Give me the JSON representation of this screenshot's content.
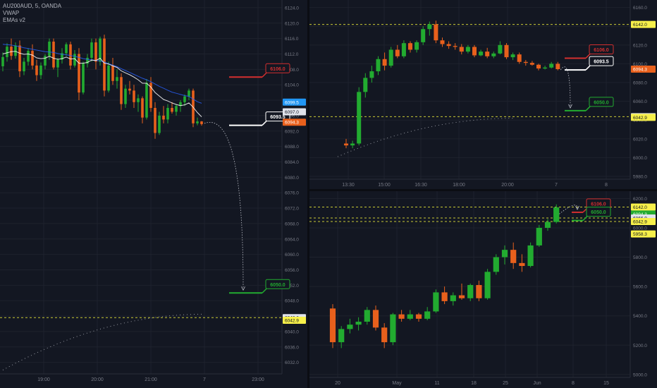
{
  "legend": {
    "symbol_line": "AU200AUD, 5, OANDA",
    "indicator_1": "VWAP",
    "indicator_2": "EMAs v2"
  },
  "colors": {
    "background": "#131722",
    "grid": "#1e222d",
    "bull": "#26a69a",
    "bull_candle": "#22ab30",
    "bear_candle": "#e8601c",
    "target_red": "#d32f2f",
    "target_white": "#ffffff",
    "target_green": "#22ab30",
    "level_yellow": "#c9c934",
    "ema_blue": "#2962ff",
    "vwap": "#ffffff",
    "axis_text": "#787b86",
    "price_badge_blue": "#2196f3",
    "price_badge_orange": "#e8601c",
    "price_badge_yellow": "#f7f04a"
  },
  "chart_data": [
    {
      "panel": "left",
      "type": "candlestick",
      "timeframe": "5",
      "x_ticks": [
        "19:00",
        "20:00",
        "21:00",
        "7",
        "23:00"
      ],
      "y_ticks": [
        6032.0,
        6036.0,
        6040.0,
        6044.0,
        6048.0,
        6052.0,
        6056.0,
        6060.0,
        6064.0,
        6068.0,
        6072.0,
        6076.0,
        6080.0,
        6084.0,
        6088.0,
        6092.0,
        6096.0,
        6100.0,
        6104.0,
        6108.0,
        6112.0,
        6116.0,
        6120.0,
        6124.0
      ],
      "ylim": [
        6029,
        6126
      ],
      "candles": [
        [
          6108.8,
          6112.4,
          6107.5,
          6111.2
        ],
        [
          6111.2,
          6114.8,
          6110.0,
          6113.9
        ],
        [
          6113.9,
          6116.0,
          6110.5,
          6111.5
        ],
        [
          6111.5,
          6115.0,
          6110.8,
          6114.2
        ],
        [
          6114.2,
          6115.5,
          6106.0,
          6107.5
        ],
        [
          6107.5,
          6111.0,
          6106.5,
          6110.0
        ],
        [
          6110.0,
          6113.5,
          6109.0,
          6112.8
        ],
        [
          6112.8,
          6114.5,
          6108.0,
          6109.0
        ],
        [
          6109.0,
          6110.5,
          6105.0,
          6106.5
        ],
        [
          6106.5,
          6109.8,
          6105.5,
          6109.0
        ],
        [
          6109.0,
          6112.0,
          6108.0,
          6111.5
        ],
        [
          6111.5,
          6116.0,
          6110.5,
          6115.2
        ],
        [
          6115.2,
          6116.0,
          6108.0,
          6108.5
        ],
        [
          6108.5,
          6111.0,
          6106.0,
          6110.5
        ],
        [
          6110.5,
          6113.5,
          6109.5,
          6112.2
        ],
        [
          6112.2,
          6115.0,
          6111.5,
          6114.5
        ],
        [
          6114.5,
          6115.2,
          6108.0,
          6109.0
        ],
        [
          6109.0,
          6113.0,
          6108.5,
          6112.0
        ],
        [
          6112.0,
          6113.5,
          6100.0,
          6102.0
        ],
        [
          6102.0,
          6110.0,
          6101.5,
          6109.5
        ],
        [
          6109.5,
          6112.0,
          6108.5,
          6111.0
        ],
        [
          6111.0,
          6116.0,
          6110.0,
          6115.0
        ],
        [
          6115.0,
          6116.0,
          6108.0,
          6110.0
        ],
        [
          6110.0,
          6116.5,
          6109.0,
          6116.0
        ],
        [
          6116.0,
          6117.0,
          6101.0,
          6102.5
        ],
        [
          6102.5,
          6110.0,
          6102.0,
          6109.0
        ],
        [
          6109.0,
          6111.0,
          6104.0,
          6105.0
        ],
        [
          6105.0,
          6108.0,
          6103.0,
          6106.0
        ],
        [
          6106.0,
          6107.0,
          6097.5,
          6099.0
        ],
        [
          6099.0,
          6104.0,
          6098.0,
          6103.0
        ],
        [
          6103.0,
          6105.0,
          6101.5,
          6102.5
        ],
        [
          6102.5,
          6104.0,
          6098.0,
          6099.5
        ],
        [
          6099.5,
          6101.5,
          6097.0,
          6100.5
        ],
        [
          6100.5,
          6101.0,
          6094.0,
          6095.5
        ],
        [
          6095.5,
          6105.5,
          6095.0,
          6104.5
        ],
        [
          6104.5,
          6106.0,
          6097.0,
          6098.0
        ],
        [
          6098.0,
          6099.5,
          6090.0,
          6091.5
        ],
        [
          6091.5,
          6097.0,
          6091.0,
          6096.0
        ],
        [
          6096.0,
          6098.5,
          6094.0,
          6095.0
        ],
        [
          6095.0,
          6099.0,
          6094.0,
          6098.0
        ],
        [
          6098.0,
          6099.5,
          6096.5,
          6097.0
        ],
        [
          6097.0,
          6099.0,
          6096.0,
          6098.5
        ],
        [
          6098.5,
          6100.0,
          6097.0,
          6099.5
        ],
        [
          6099.5,
          6101.5,
          6098.5,
          6101.0
        ],
        [
          6101.0,
          6103.0,
          6100.0,
          6102.5
        ],
        [
          6102.5,
          6103.0,
          6093.0,
          6094.0
        ],
        [
          6094.0,
          6095.5,
          6093.5,
          6094.5
        ],
        [
          6094.5,
          6094.6,
          6093.4,
          6093.8
        ]
      ],
      "ema": [
        6114.5,
        6114.4,
        6114.3,
        6114.1,
        6113.9,
        6113.6,
        6113.4,
        6113.2,
        6113.0,
        6112.8,
        6112.6,
        6112.5,
        6112.4,
        6112.1,
        6111.9,
        6111.8,
        6111.6,
        6111.4,
        6111.1,
        6110.8,
        6110.6,
        6110.5,
        6110.3,
        6110.2,
        6109.9,
        6109.5,
        6109.1,
        6108.7,
        6108.2,
        6107.7,
        6107.2,
        6106.7,
        6106.2,
        6105.7,
        6105.3,
        6104.8,
        6104.2,
        6103.6,
        6103.1,
        6102.6,
        6102.1,
        6101.8,
        6101.5,
        6101.2,
        6101.0,
        6100.3,
        6099.6,
        6099.2
      ],
      "vwap": [
        6112.0,
        6112.3,
        6112.6,
        6112.7,
        6112.2,
        6111.9,
        6112.0,
        6111.7,
        6111.0,
        6110.8,
        6110.9,
        6111.4,
        6110.9,
        6110.6,
        6110.8,
        6111.2,
        6110.7,
        6110.8,
        6109.6,
        6109.6,
        6109.8,
        6110.4,
        6110.3,
        6110.9,
        6109.6,
        6109.4,
        6108.9,
        6108.5,
        6107.6,
        6107.1,
        6106.6,
        6106.0,
        6105.3,
        6104.4,
        6104.4,
        6103.4,
        6102.0,
        6101.1,
        6100.2,
        6099.8,
        6099.3,
        6098.9,
        6098.6,
        6098.8,
        6099.3,
        6098.2,
        6096.8,
        6095.7
      ],
      "vwap_dotted": [
        6030.0,
        6044.5
      ],
      "arrow_from": 6094.0,
      "arrow_to": 6050.0,
      "targets": [
        {
          "label": "6106.0",
          "value": 6106.0,
          "color": "#d32f2f"
        },
        {
          "label": "6093.5",
          "value": 6093.5,
          "color": "#ffffff"
        },
        {
          "label": "6050.0",
          "value": 6050.0,
          "color": "#22ab30"
        }
      ],
      "levels": [
        {
          "value": 6043.6,
          "color": "#c9c934"
        }
      ],
      "price_badges": [
        {
          "label": "6099.5",
          "value": 6099.5,
          "bg": "#2196f3",
          "fg": "#ffffff"
        },
        {
          "label": "6097.0",
          "value": 6097.0,
          "bg": "#e0e3eb",
          "fg": "#131722"
        },
        {
          "label": "6094.3",
          "value": 6094.3,
          "bg": "#e8601c",
          "fg": "#ffffff"
        },
        {
          "label": "6043.6",
          "value": 6043.6,
          "bg": "#e0e3eb",
          "fg": "#131722"
        },
        {
          "label": "6042.9",
          "value": 6042.9,
          "bg": "#f7f04a",
          "fg": "#131722"
        }
      ]
    },
    {
      "panel": "top-right",
      "type": "candlestick",
      "timeframe": "30",
      "x_ticks": [
        "13:30",
        "15:00",
        "16:30",
        "18:00",
        "20:00",
        "7",
        "8"
      ],
      "y_ticks": [
        5980.0,
        6000.0,
        6020.0,
        6040.0,
        6060.0,
        6080.0,
        6100.0,
        6120.0,
        6140.0,
        6160.0
      ],
      "ylim": [
        5977,
        6168
      ],
      "candles": [
        [
          6015.0,
          6020.0,
          6010.0,
          6013.0
        ],
        [
          6013.0,
          6018.0,
          6010.0,
          6015.0
        ],
        [
          6015.0,
          6075.0,
          6013.0,
          6070.0
        ],
        [
          6070.0,
          6090.0,
          6064.0,
          6085.0
        ],
        [
          6085.0,
          6098.0,
          6080.0,
          6092.0
        ],
        [
          6092.0,
          6108.0,
          6088.0,
          6105.0
        ],
        [
          6105.0,
          6112.0,
          6093.0,
          6098.0
        ],
        [
          6098.0,
          6118.0,
          6096.0,
          6115.0
        ],
        [
          6115.0,
          6120.0,
          6106.0,
          6108.0
        ],
        [
          6108.0,
          6125.0,
          6106.0,
          6122.0
        ],
        [
          6122.0,
          6124.0,
          6112.0,
          6115.0
        ],
        [
          6115.0,
          6125.0,
          6112.0,
          6123.0
        ],
        [
          6123.0,
          6140.0,
          6120.0,
          6137.0
        ],
        [
          6137.0,
          6145.0,
          6130.0,
          6142.0
        ],
        [
          6142.0,
          6146.0,
          6122.0,
          6125.0
        ],
        [
          6125.0,
          6128.0,
          6118.0,
          6121.0
        ],
        [
          6121.0,
          6124.0,
          6116.0,
          6119.0
        ],
        [
          6119.0,
          6122.0,
          6115.0,
          6118.0
        ],
        [
          6118.0,
          6121.0,
          6110.0,
          6113.0
        ],
        [
          6113.0,
          6120.0,
          6111.0,
          6118.0
        ],
        [
          6118.0,
          6120.0,
          6107.0,
          6109.0
        ],
        [
          6109.0,
          6115.0,
          6108.0,
          6113.0
        ],
        [
          6113.0,
          6117.0,
          6106.0,
          6108.0
        ],
        [
          6108.0,
          6113.0,
          6106.0,
          6111.0
        ],
        [
          6111.0,
          6124.0,
          6110.0,
          6120.0
        ],
        [
          6120.0,
          6122.0,
          6105.0,
          6107.0
        ],
        [
          6107.0,
          6112.0,
          6104.0,
          6110.0
        ],
        [
          6110.0,
          6112.0,
          6100.0,
          6102.0
        ],
        [
          6102.0,
          6104.0,
          6098.0,
          6101.0
        ],
        [
          6101.0,
          6103.0,
          6098.0,
          6099.0
        ],
        [
          6099.0,
          6100.0,
          6093.0,
          6095.0
        ],
        [
          6095.0,
          6098.0,
          6094.0,
          6096.0
        ],
        [
          6096.0,
          6102.0,
          6095.0,
          6100.0
        ],
        [
          6100.0,
          6102.0,
          6093.0,
          6094.3
        ]
      ],
      "vwap_dotted": [
        6001.0,
        6042.0
      ],
      "arrow_from": 6093.5,
      "arrow_to": 6050.0,
      "targets": [
        {
          "label": "6106.0",
          "value": 6106.0,
          "color": "#d32f2f"
        },
        {
          "label": "6093.5",
          "value": 6093.5,
          "color": "#ffffff"
        },
        {
          "label": "6050.0",
          "value": 6050.0,
          "color": "#22ab30"
        }
      ],
      "levels": [
        {
          "value": 6142.0,
          "color": "#c9c934"
        },
        {
          "value": 6043.6,
          "color": "#c9c934"
        }
      ],
      "price_badges": [
        {
          "label": "6142.0",
          "value": 6142.0,
          "bg": "#f7f04a",
          "fg": "#131722"
        },
        {
          "label": "6094.3",
          "value": 6094.3,
          "bg": "#e8601c",
          "fg": "#ffffff"
        },
        {
          "label": "6043.6",
          "value": 6043.6,
          "bg": "#e0e3eb",
          "fg": "#131722"
        },
        {
          "label": "6042.9",
          "value": 6042.9,
          "bg": "#f7f04a",
          "fg": "#131722"
        }
      ]
    },
    {
      "panel": "bottom-right",
      "type": "candlestick",
      "timeframe": "D",
      "x_ticks": [
        "20",
        "May",
        "11",
        "18",
        "25",
        "Jun",
        "8",
        "15"
      ],
      "y_ticks": [
        5000.0,
        5200.0,
        5400.0,
        5600.0,
        5800.0,
        6000.0,
        6200.0
      ],
      "ylim": [
        4980,
        6250
      ],
      "candles": [
        [
          5450.0,
          5480.0,
          5180.0,
          5220.0
        ],
        [
          5220.0,
          5330.0,
          5180.0,
          5310.0
        ],
        [
          5310.0,
          5380.0,
          5280.0,
          5340.0
        ],
        [
          5340.0,
          5390.0,
          5300.0,
          5360.0
        ],
        [
          5360.0,
          5460.0,
          5340.0,
          5440.0
        ],
        [
          5440.0,
          5470.0,
          5300.0,
          5320.0
        ],
        [
          5320.0,
          5350.0,
          5180.0,
          5220.0
        ],
        [
          5220.0,
          5420.0,
          5200.0,
          5410.0
        ],
        [
          5410.0,
          5440.0,
          5360.0,
          5380.0
        ],
        [
          5380.0,
          5440.0,
          5370.0,
          5410.0
        ],
        [
          5410.0,
          5420.0,
          5360.0,
          5380.0
        ],
        [
          5380.0,
          5460.0,
          5370.0,
          5430.0
        ],
        [
          5430.0,
          5580.0,
          5420.0,
          5560.0
        ],
        [
          5560.0,
          5600.0,
          5480.0,
          5500.0
        ],
        [
          5500.0,
          5560.0,
          5470.0,
          5540.0
        ],
        [
          5540.0,
          5620.0,
          5510.0,
          5520.0
        ],
        [
          5520.0,
          5620.0,
          5500.0,
          5610.0
        ],
        [
          5610.0,
          5640.0,
          5500.0,
          5520.0
        ],
        [
          5520.0,
          5720.0,
          5510.0,
          5700.0
        ],
        [
          5700.0,
          5820.0,
          5680.0,
          5800.0
        ],
        [
          5800.0,
          5880.0,
          5750.0,
          5850.0
        ],
        [
          5850.0,
          5900.0,
          5720.0,
          5760.0
        ],
        [
          5760.0,
          5820.0,
          5700.0,
          5740.0
        ],
        [
          5740.0,
          5900.0,
          5730.0,
          5880.0
        ],
        [
          5880.0,
          6020.0,
          5870.0,
          6000.0
        ],
        [
          6000.0,
          6060.0,
          5980.0,
          6040.0
        ],
        [
          6040.0,
          6160.0,
          6030.0,
          6140.0
        ]
      ],
      "arrow_from": 6094.3,
      "arrow_to": 6106.0,
      "targets": [
        {
          "label": "6106.0",
          "value": 6106.0,
          "color": "#d32f2f"
        },
        {
          "label": "6050.0",
          "value": 6050.0,
          "color": "#22ab30"
        }
      ],
      "levels": [
        {
          "value": 6142.0,
          "color": "#c9c934"
        },
        {
          "value": 6066.9,
          "color": "#c9c934"
        },
        {
          "value": 6042.9,
          "color": "#c9c934"
        }
      ],
      "price_badges": [
        {
          "label": "6142.0",
          "value": 6142.0,
          "bg": "#f7f04a",
          "fg": "#131722"
        },
        {
          "label": "6094.3",
          "value": 6094.3,
          "bg": "#22ab30",
          "fg": "#ffffff"
        },
        {
          "label": "6066.9",
          "value": 6066.9,
          "bg": "#e0e3eb",
          "fg": "#131722"
        },
        {
          "label": "6042.9",
          "value": 6042.9,
          "bg": "#f7f04a",
          "fg": "#131722"
        },
        {
          "label": "5958.3",
          "value": 5958.3,
          "bg": "#f7f04a",
          "fg": "#131722"
        }
      ]
    }
  ]
}
